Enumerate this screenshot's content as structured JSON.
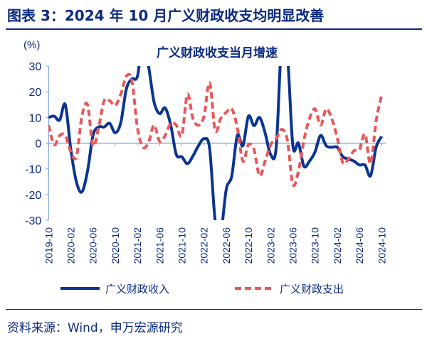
{
  "header": {
    "title": "图表 3：2024 年 10 月广义财政收支均明显改善"
  },
  "footer": {
    "source": "资料来源：Wind，申万宏源研究"
  },
  "chart_data": {
    "type": "line",
    "title": "广义财政收支当月增速",
    "ylabel": "(%)",
    "ylim": [
      -30,
      30
    ],
    "yticks": [
      "30",
      "20",
      "10",
      "0",
      "-10",
      "-20",
      "-30"
    ],
    "ytick_values": [
      30,
      20,
      10,
      0,
      -10,
      -20,
      -30
    ],
    "xtick_labels": [
      "2019-10",
      "2020-02",
      "2020-06",
      "2020-10",
      "2021-02",
      "2021-06",
      "2021-10",
      "2022-02",
      "2022-06",
      "2022-10",
      "2023-02",
      "2023-06",
      "2023-10",
      "2024-02",
      "2024-06",
      "2024-10"
    ],
    "x_start": "2019-10",
    "x_end": "2024-10",
    "frequency": "monthly",
    "grid": false,
    "legend": "bottom",
    "series": [
      {
        "name": "广义财政收入",
        "color": "#0a3491",
        "style": "solid",
        "values": [
          10,
          10.5,
          9,
          15,
          -2.5,
          -15,
          -19,
          -11,
          3,
          6.3,
          6.3,
          7.7,
          4,
          8,
          21,
          25,
          26,
          40,
          30,
          16,
          11.5,
          13.7,
          7,
          -4.4,
          -5.3,
          -8,
          -5,
          -1,
          1.7,
          -2,
          -30,
          -35,
          -18,
          -12.7,
          3,
          -1,
          10.5,
          6.8,
          10,
          4,
          -4.4,
          -1.6,
          40,
          35,
          -1,
          0,
          -9,
          -7,
          -3.4,
          3,
          -1,
          -1.6,
          -1.6,
          -5.3,
          -6.2,
          -7,
          -8.5,
          -8.5,
          -12.7,
          -1.6,
          2.6
        ]
      },
      {
        "name": "广义财政支出",
        "color": "#e8585a",
        "style": "dashed",
        "values": [
          7,
          -0.6,
          3,
          3,
          -3.4,
          -5.3,
          10.5,
          15,
          -1,
          6,
          16.5,
          16.5,
          14.7,
          19,
          26,
          24.4,
          6,
          -1.6,
          0.3,
          7,
          0.7,
          3,
          7.7,
          7,
          3,
          19,
          9.6,
          7,
          10.5,
          23.5,
          5,
          9.6,
          12,
          13.3,
          6,
          -7,
          -0.6,
          -2.5,
          -12.7,
          -7,
          -0.6,
          1.7,
          5.4,
          1.2,
          -16,
          -11,
          1.2,
          9.6,
          13.3,
          7,
          13.3,
          9.6,
          2,
          -7.6,
          -6.2,
          -3,
          -2.5,
          3.5,
          -8,
          8.6,
          18.8
        ]
      }
    ]
  }
}
